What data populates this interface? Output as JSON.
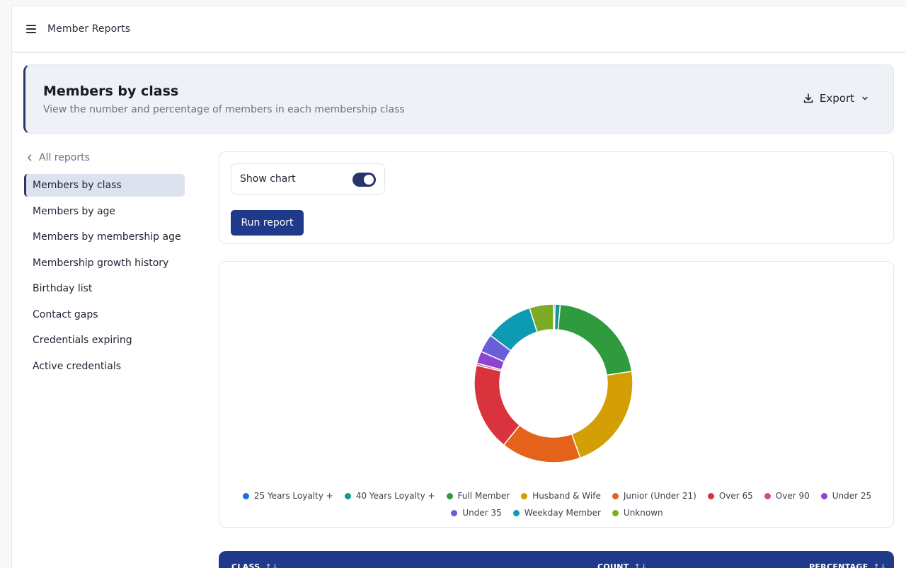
{
  "topbar": {
    "title": "Member Reports"
  },
  "header": {
    "title": "Members by class",
    "subtitle": "View the number and percentage of members in each membership class",
    "export_label": "Export"
  },
  "sidebar": {
    "back_label": "All reports",
    "items": [
      {
        "label": "Members by class",
        "active": true
      },
      {
        "label": "Members by age"
      },
      {
        "label": "Members by membership age"
      },
      {
        "label": "Membership growth history"
      },
      {
        "label": "Birthday list"
      },
      {
        "label": "Contact gaps"
      },
      {
        "label": "Credentials expiring"
      },
      {
        "label": "Active credentials"
      }
    ]
  },
  "controls": {
    "show_chart_label": "Show chart",
    "show_chart_on": true,
    "run_label": "Run report"
  },
  "chart_data": {
    "type": "pie",
    "donut": true,
    "categories": [
      "25 Years Loyalty +",
      "40 Years Loyalty +",
      "Full Member",
      "Husband & Wife",
      "Junior (Under 21)",
      "Over 65",
      "Over 90",
      "Under 25",
      "Under 35",
      "Weekday Member",
      "Unknown"
    ],
    "values": [
      0.3,
      1.0,
      20.3,
      21.0,
      15.6,
      17.1,
      0.4,
      2.4,
      3.6,
      9.3,
      4.7
    ],
    "colors": [
      "#1a6fe0",
      "#13998e",
      "#2f9a3e",
      "#d39f05",
      "#e5621a",
      "#d9333d",
      "#cf4a9a",
      "#8e44cf",
      "#6a5fd8",
      "#0d9bb3",
      "#7dab26"
    ],
    "legend_position": "bottom"
  },
  "table": {
    "columns": [
      {
        "label": "CLASS"
      },
      {
        "label": "COUNT"
      },
      {
        "label": "PERCENTAGE"
      }
    ],
    "sort_icon": "sort-icon"
  }
}
